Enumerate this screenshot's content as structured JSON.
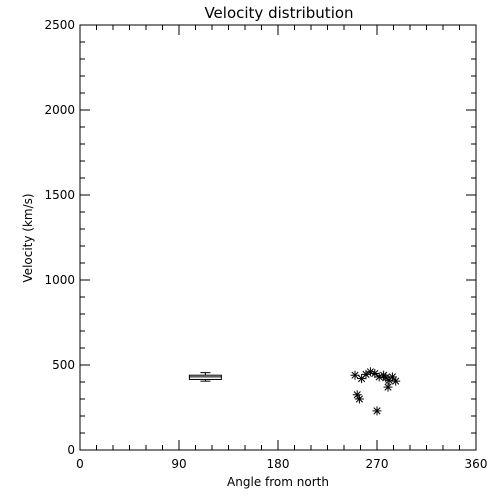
{
  "chart_data": {
    "type": "scatter",
    "title": "Velocity distribution",
    "xlabel": "Angle from north",
    "ylabel": "Velocity (km/s)",
    "xlim": [
      0,
      360
    ],
    "ylim": [
      0,
      2500
    ],
    "xticks": [
      0,
      90,
      180,
      270,
      360
    ],
    "yticks": [
      0,
      500,
      1000,
      1500,
      2000,
      2500
    ],
    "grid": false,
    "colors": {
      "axis": "#000000",
      "marker": "#000000",
      "background": "#ffffff"
    },
    "boxplot": {
      "x": 114,
      "min": 405,
      "q1": 415,
      "median": 430,
      "q3": 440,
      "max": 455
    },
    "points": [
      {
        "x": 250,
        "y": 440
      },
      {
        "x": 256,
        "y": 420
      },
      {
        "x": 260,
        "y": 445
      },
      {
        "x": 264,
        "y": 460
      },
      {
        "x": 268,
        "y": 450
      },
      {
        "x": 272,
        "y": 430
      },
      {
        "x": 276,
        "y": 440
      },
      {
        "x": 278,
        "y": 425
      },
      {
        "x": 281,
        "y": 410
      },
      {
        "x": 284,
        "y": 430
      },
      {
        "x": 287,
        "y": 405
      },
      {
        "x": 280,
        "y": 370
      },
      {
        "x": 252,
        "y": 325
      },
      {
        "x": 254,
        "y": 300
      },
      {
        "x": 270,
        "y": 230
      }
    ]
  }
}
